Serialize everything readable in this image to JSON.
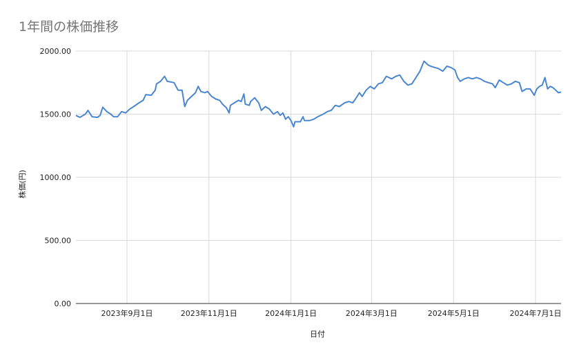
{
  "chart_data": {
    "type": "line",
    "title": "1年間の株価推移",
    "xlabel": "日付",
    "ylabel": "株価(円)",
    "ylim": [
      0,
      2000
    ],
    "y_ticks": [
      "0.00",
      "500.00",
      "1000.00",
      "1500.00",
      "2000.00"
    ],
    "x_ticks": [
      {
        "date": "2023-09-01",
        "label": "2023年9月1日"
      },
      {
        "date": "2023-11-01",
        "label": "2023年11月1日"
      },
      {
        "date": "2024-01-01",
        "label": "2024年1月1日"
      },
      {
        "date": "2024-03-01",
        "label": "2024年3月1日"
      },
      {
        "date": "2024-05-01",
        "label": "2024年5月1日"
      },
      {
        "date": "2024-07-01",
        "label": "2024年7月1日"
      }
    ],
    "xlim": [
      "2023-07-25",
      "2024-07-20"
    ],
    "grid": true,
    "line_color": "#4a86cf",
    "series": [
      {
        "points": [
          [
            "2023-07-25",
            1490
          ],
          [
            "2023-07-28",
            1475
          ],
          [
            "2023-08-01",
            1500
          ],
          [
            "2023-08-03",
            1530
          ],
          [
            "2023-08-06",
            1480
          ],
          [
            "2023-08-10",
            1475
          ],
          [
            "2023-08-12",
            1490
          ],
          [
            "2023-08-14",
            1555
          ],
          [
            "2023-08-17",
            1520
          ],
          [
            "2023-08-20",
            1500
          ],
          [
            "2023-08-22",
            1480
          ],
          [
            "2023-08-25",
            1480
          ],
          [
            "2023-08-28",
            1520
          ],
          [
            "2023-08-31",
            1510
          ],
          [
            "2023-09-03",
            1540
          ],
          [
            "2023-09-06",
            1560
          ],
          [
            "2023-09-10",
            1590
          ],
          [
            "2023-09-13",
            1610
          ],
          [
            "2023-09-15",
            1655
          ],
          [
            "2023-09-19",
            1650
          ],
          [
            "2023-09-22",
            1690
          ],
          [
            "2023-09-23",
            1740
          ],
          [
            "2023-09-26",
            1760
          ],
          [
            "2023-09-29",
            1800
          ],
          [
            "2023-10-01",
            1760
          ],
          [
            "2023-10-06",
            1750
          ],
          [
            "2023-10-09",
            1690
          ],
          [
            "2023-10-12",
            1690
          ],
          [
            "2023-10-14",
            1560
          ],
          [
            "2023-10-16",
            1610
          ],
          [
            "2023-10-19",
            1640
          ],
          [
            "2023-10-22",
            1670
          ],
          [
            "2023-10-24",
            1720
          ],
          [
            "2023-10-26",
            1680
          ],
          [
            "2023-10-29",
            1670
          ],
          [
            "2023-10-31",
            1680
          ],
          [
            "2023-11-03",
            1640
          ],
          [
            "2023-11-06",
            1620
          ],
          [
            "2023-11-09",
            1610
          ],
          [
            "2023-11-11",
            1580
          ],
          [
            "2023-11-14",
            1550
          ],
          [
            "2023-11-16",
            1510
          ],
          [
            "2023-11-17",
            1570
          ],
          [
            "2023-11-20",
            1590
          ],
          [
            "2023-11-23",
            1610
          ],
          [
            "2023-11-25",
            1600
          ],
          [
            "2023-11-27",
            1660
          ],
          [
            "2023-11-28",
            1580
          ],
          [
            "2023-12-01",
            1570
          ],
          [
            "2023-12-02",
            1600
          ],
          [
            "2023-12-05",
            1630
          ],
          [
            "2023-12-08",
            1590
          ],
          [
            "2023-12-10",
            1530
          ],
          [
            "2023-12-13",
            1560
          ],
          [
            "2023-12-16",
            1540
          ],
          [
            "2023-12-19",
            1500
          ],
          [
            "2023-12-22",
            1520
          ],
          [
            "2023-12-24",
            1490
          ],
          [
            "2023-12-26",
            1510
          ],
          [
            "2023-12-28",
            1460
          ],
          [
            "2023-12-30",
            1480
          ],
          [
            "2024-01-01",
            1450
          ],
          [
            "2024-01-03",
            1400
          ],
          [
            "2024-01-04",
            1440
          ],
          [
            "2024-01-08",
            1440
          ],
          [
            "2024-01-10",
            1480
          ],
          [
            "2024-01-11",
            1450
          ],
          [
            "2024-01-15",
            1450
          ],
          [
            "2024-01-18",
            1460
          ],
          [
            "2024-01-21",
            1480
          ],
          [
            "2024-01-25",
            1500
          ],
          [
            "2024-01-28",
            1520
          ],
          [
            "2024-01-31",
            1530
          ],
          [
            "2024-02-03",
            1570
          ],
          [
            "2024-02-06",
            1560
          ],
          [
            "2024-02-10",
            1590
          ],
          [
            "2024-02-13",
            1600
          ],
          [
            "2024-02-16",
            1590
          ],
          [
            "2024-02-18",
            1620
          ],
          [
            "2024-02-21",
            1670
          ],
          [
            "2024-02-23",
            1640
          ],
          [
            "2024-02-26",
            1690
          ],
          [
            "2024-02-29",
            1720
          ],
          [
            "2024-03-03",
            1700
          ],
          [
            "2024-03-06",
            1740
          ],
          [
            "2024-03-09",
            1750
          ],
          [
            "2024-03-12",
            1800
          ],
          [
            "2024-03-16",
            1780
          ],
          [
            "2024-03-19",
            1800
          ],
          [
            "2024-03-22",
            1810
          ],
          [
            "2024-03-25",
            1760
          ],
          [
            "2024-03-28",
            1730
          ],
          [
            "2024-03-31",
            1740
          ],
          [
            "2024-04-03",
            1790
          ],
          [
            "2024-04-06",
            1840
          ],
          [
            "2024-04-09",
            1920
          ],
          [
            "2024-04-12",
            1890
          ],
          [
            "2024-04-14",
            1880
          ],
          [
            "2024-04-17",
            1870
          ],
          [
            "2024-04-20",
            1860
          ],
          [
            "2024-04-23",
            1840
          ],
          [
            "2024-04-26",
            1880
          ],
          [
            "2024-04-29",
            1870
          ],
          [
            "2024-05-02",
            1850
          ],
          [
            "2024-05-04",
            1790
          ],
          [
            "2024-05-06",
            1760
          ],
          [
            "2024-05-09",
            1780
          ],
          [
            "2024-05-12",
            1790
          ],
          [
            "2024-05-15",
            1780
          ],
          [
            "2024-05-18",
            1790
          ],
          [
            "2024-05-21",
            1780
          ],
          [
            "2024-05-24",
            1760
          ],
          [
            "2024-05-27",
            1750
          ],
          [
            "2024-05-30",
            1740
          ],
          [
            "2024-06-01",
            1710
          ],
          [
            "2024-06-04",
            1770
          ],
          [
            "2024-06-07",
            1750
          ],
          [
            "2024-06-10",
            1730
          ],
          [
            "2024-06-13",
            1740
          ],
          [
            "2024-06-16",
            1760
          ],
          [
            "2024-06-19",
            1750
          ],
          [
            "2024-06-21",
            1680
          ],
          [
            "2024-06-24",
            1700
          ],
          [
            "2024-06-27",
            1700
          ],
          [
            "2024-06-30",
            1650
          ],
          [
            "2024-07-02",
            1700
          ],
          [
            "2024-07-04",
            1720
          ],
          [
            "2024-07-06",
            1730
          ],
          [
            "2024-07-08",
            1790
          ],
          [
            "2024-07-10",
            1700
          ],
          [
            "2024-07-12",
            1720
          ],
          [
            "2024-07-14",
            1710
          ],
          [
            "2024-07-16",
            1690
          ],
          [
            "2024-07-18",
            1670
          ],
          [
            "2024-07-20",
            1675
          ]
        ]
      }
    ]
  }
}
